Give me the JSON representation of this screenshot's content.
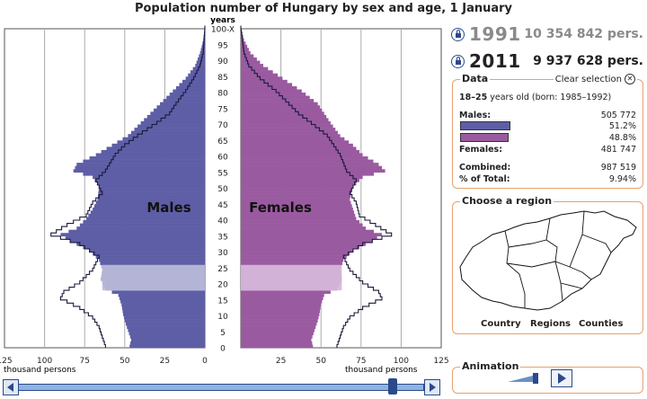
{
  "title": "Population number of Hungary by sex and age, 1 January",
  "years": [
    {
      "year": "1991",
      "population": "10 354 842 pers."
    },
    {
      "year": "2011",
      "population": "9 937 628 pers."
    }
  ],
  "chart_data": {
    "type": "bar",
    "subtype": "population-pyramid",
    "age_axis_label": "years",
    "age_ticks": [
      "100-X",
      "95",
      "90",
      "85",
      "80",
      "75",
      "70",
      "65",
      "60",
      "55",
      "50",
      "45",
      "40",
      "35",
      "30",
      "25",
      "20",
      "15",
      "10",
      "5",
      "0"
    ],
    "x_ticks_left": [
      "125",
      "100",
      "75",
      "50",
      "25",
      "0"
    ],
    "x_ticks_right": [
      "25",
      "50",
      "75",
      "100",
      "125"
    ],
    "x_unit": "thousand persons",
    "xlim": [
      0,
      125
    ],
    "series_labels": {
      "male": "Males",
      "female": "Females"
    },
    "colors": {
      "male": "#5e5ea6",
      "female": "#9a5aa0",
      "highlight_male": "#b4b4d6",
      "highlight_female": "#d2b2d7",
      "outline": "#1a1a3a"
    },
    "selection": {
      "from_age": 18,
      "to_age": 25
    },
    "grid": true,
    "male_2011_approx": [
      {
        "age": 0,
        "value": 47
      },
      {
        "age": 2,
        "value": 46
      },
      {
        "age": 5,
        "value": 48
      },
      {
        "age": 8,
        "value": 50
      },
      {
        "age": 10,
        "value": 51
      },
      {
        "age": 13,
        "value": 52
      },
      {
        "age": 16,
        "value": 54
      },
      {
        "age": 18,
        "value": 62
      },
      {
        "age": 21,
        "value": 65
      },
      {
        "age": 24,
        "value": 64
      },
      {
        "age": 27,
        "value": 66
      },
      {
        "age": 30,
        "value": 72
      },
      {
        "age": 33,
        "value": 84
      },
      {
        "age": 35,
        "value": 90
      },
      {
        "age": 37,
        "value": 80
      },
      {
        "age": 40,
        "value": 74
      },
      {
        "age": 43,
        "value": 70
      },
      {
        "age": 46,
        "value": 67
      },
      {
        "age": 50,
        "value": 66
      },
      {
        "age": 53,
        "value": 70
      },
      {
        "age": 55,
        "value": 82
      },
      {
        "age": 57,
        "value": 80
      },
      {
        "age": 60,
        "value": 68
      },
      {
        "age": 63,
        "value": 58
      },
      {
        "age": 66,
        "value": 48
      },
      {
        "age": 70,
        "value": 40
      },
      {
        "age": 73,
        "value": 34
      },
      {
        "age": 76,
        "value": 28
      },
      {
        "age": 80,
        "value": 20
      },
      {
        "age": 84,
        "value": 12
      },
      {
        "age": 88,
        "value": 6
      },
      {
        "age": 92,
        "value": 3
      },
      {
        "age": 96,
        "value": 1
      },
      {
        "age": 100,
        "value": 0
      }
    ],
    "female_2011_approx": [
      {
        "age": 0,
        "value": 45
      },
      {
        "age": 2,
        "value": 44
      },
      {
        "age": 5,
        "value": 46
      },
      {
        "age": 8,
        "value": 48
      },
      {
        "age": 10,
        "value": 49
      },
      {
        "age": 13,
        "value": 50
      },
      {
        "age": 16,
        "value": 52
      },
      {
        "age": 18,
        "value": 60
      },
      {
        "age": 21,
        "value": 63
      },
      {
        "age": 24,
        "value": 62
      },
      {
        "age": 27,
        "value": 64
      },
      {
        "age": 30,
        "value": 70
      },
      {
        "age": 33,
        "value": 82
      },
      {
        "age": 35,
        "value": 88
      },
      {
        "age": 37,
        "value": 78
      },
      {
        "age": 40,
        "value": 72
      },
      {
        "age": 43,
        "value": 70
      },
      {
        "age": 46,
        "value": 68
      },
      {
        "age": 50,
        "value": 70
      },
      {
        "age": 53,
        "value": 76
      },
      {
        "age": 55,
        "value": 90
      },
      {
        "age": 57,
        "value": 86
      },
      {
        "age": 60,
        "value": 76
      },
      {
        "age": 63,
        "value": 70
      },
      {
        "age": 66,
        "value": 62
      },
      {
        "age": 70,
        "value": 56
      },
      {
        "age": 73,
        "value": 52
      },
      {
        "age": 76,
        "value": 48
      },
      {
        "age": 80,
        "value": 38
      },
      {
        "age": 84,
        "value": 26
      },
      {
        "age": 88,
        "value": 14
      },
      {
        "age": 92,
        "value": 6
      },
      {
        "age": 96,
        "value": 2
      },
      {
        "age": 100,
        "value": 0
      }
    ],
    "male_1991_approx": [
      {
        "age": 0,
        "value": 62
      },
      {
        "age": 3,
        "value": 64
      },
      {
        "age": 6,
        "value": 66
      },
      {
        "age": 9,
        "value": 70
      },
      {
        "age": 12,
        "value": 78
      },
      {
        "age": 15,
        "value": 90
      },
      {
        "age": 17,
        "value": 88
      },
      {
        "age": 20,
        "value": 78
      },
      {
        "age": 24,
        "value": 70
      },
      {
        "age": 28,
        "value": 66
      },
      {
        "age": 32,
        "value": 78
      },
      {
        "age": 35,
        "value": 96
      },
      {
        "age": 38,
        "value": 86
      },
      {
        "age": 41,
        "value": 74
      },
      {
        "age": 45,
        "value": 70
      },
      {
        "age": 48,
        "value": 64
      },
      {
        "age": 52,
        "value": 68
      },
      {
        "age": 55,
        "value": 62
      },
      {
        "age": 60,
        "value": 56
      },
      {
        "age": 63,
        "value": 50
      },
      {
        "age": 66,
        "value": 42
      },
      {
        "age": 70,
        "value": 30
      },
      {
        "age": 73,
        "value": 22
      },
      {
        "age": 76,
        "value": 18
      },
      {
        "age": 80,
        "value": 12
      },
      {
        "age": 84,
        "value": 7
      },
      {
        "age": 88,
        "value": 3
      },
      {
        "age": 92,
        "value": 1
      },
      {
        "age": 100,
        "value": 0
      }
    ],
    "female_1991_approx": [
      {
        "age": 0,
        "value": 60
      },
      {
        "age": 3,
        "value": 62
      },
      {
        "age": 6,
        "value": 64
      },
      {
        "age": 9,
        "value": 68
      },
      {
        "age": 12,
        "value": 76
      },
      {
        "age": 15,
        "value": 88
      },
      {
        "age": 17,
        "value": 86
      },
      {
        "age": 20,
        "value": 76
      },
      {
        "age": 24,
        "value": 68
      },
      {
        "age": 28,
        "value": 64
      },
      {
        "age": 32,
        "value": 76
      },
      {
        "age": 35,
        "value": 94
      },
      {
        "age": 38,
        "value": 84
      },
      {
        "age": 41,
        "value": 74
      },
      {
        "age": 45,
        "value": 72
      },
      {
        "age": 48,
        "value": 68
      },
      {
        "age": 52,
        "value": 72
      },
      {
        "age": 55,
        "value": 66
      },
      {
        "age": 60,
        "value": 62
      },
      {
        "age": 63,
        "value": 58
      },
      {
        "age": 66,
        "value": 54
      },
      {
        "age": 70,
        "value": 44
      },
      {
        "age": 73,
        "value": 36
      },
      {
        "age": 76,
        "value": 30
      },
      {
        "age": 80,
        "value": 22
      },
      {
        "age": 84,
        "value": 12
      },
      {
        "age": 88,
        "value": 5
      },
      {
        "age": 92,
        "value": 2
      },
      {
        "age": 100,
        "value": 0
      }
    ]
  },
  "data_panel": {
    "title": "Data",
    "clear_label": "Clear selection",
    "age_from": "18",
    "age_sep": "–",
    "age_to": "25",
    "age_suffix": " years old (born: 1985–1992)",
    "males_label": "Males:",
    "males_value": "505 772",
    "males_pct": "51.2%",
    "males_pct_value": 51.2,
    "females_pct": "48.8%",
    "females_pct_value": 48.8,
    "females_label": "Females:",
    "females_value": "481 747",
    "combined_label": "Combined:",
    "combined_value": "987 519",
    "pct_total_label": "% of Total:",
    "pct_total_value": "9.94%"
  },
  "region_panel": {
    "title": "Choose a region",
    "buttons": [
      "Country",
      "Regions",
      "Counties"
    ]
  },
  "animation_panel": {
    "title": "Animation"
  }
}
